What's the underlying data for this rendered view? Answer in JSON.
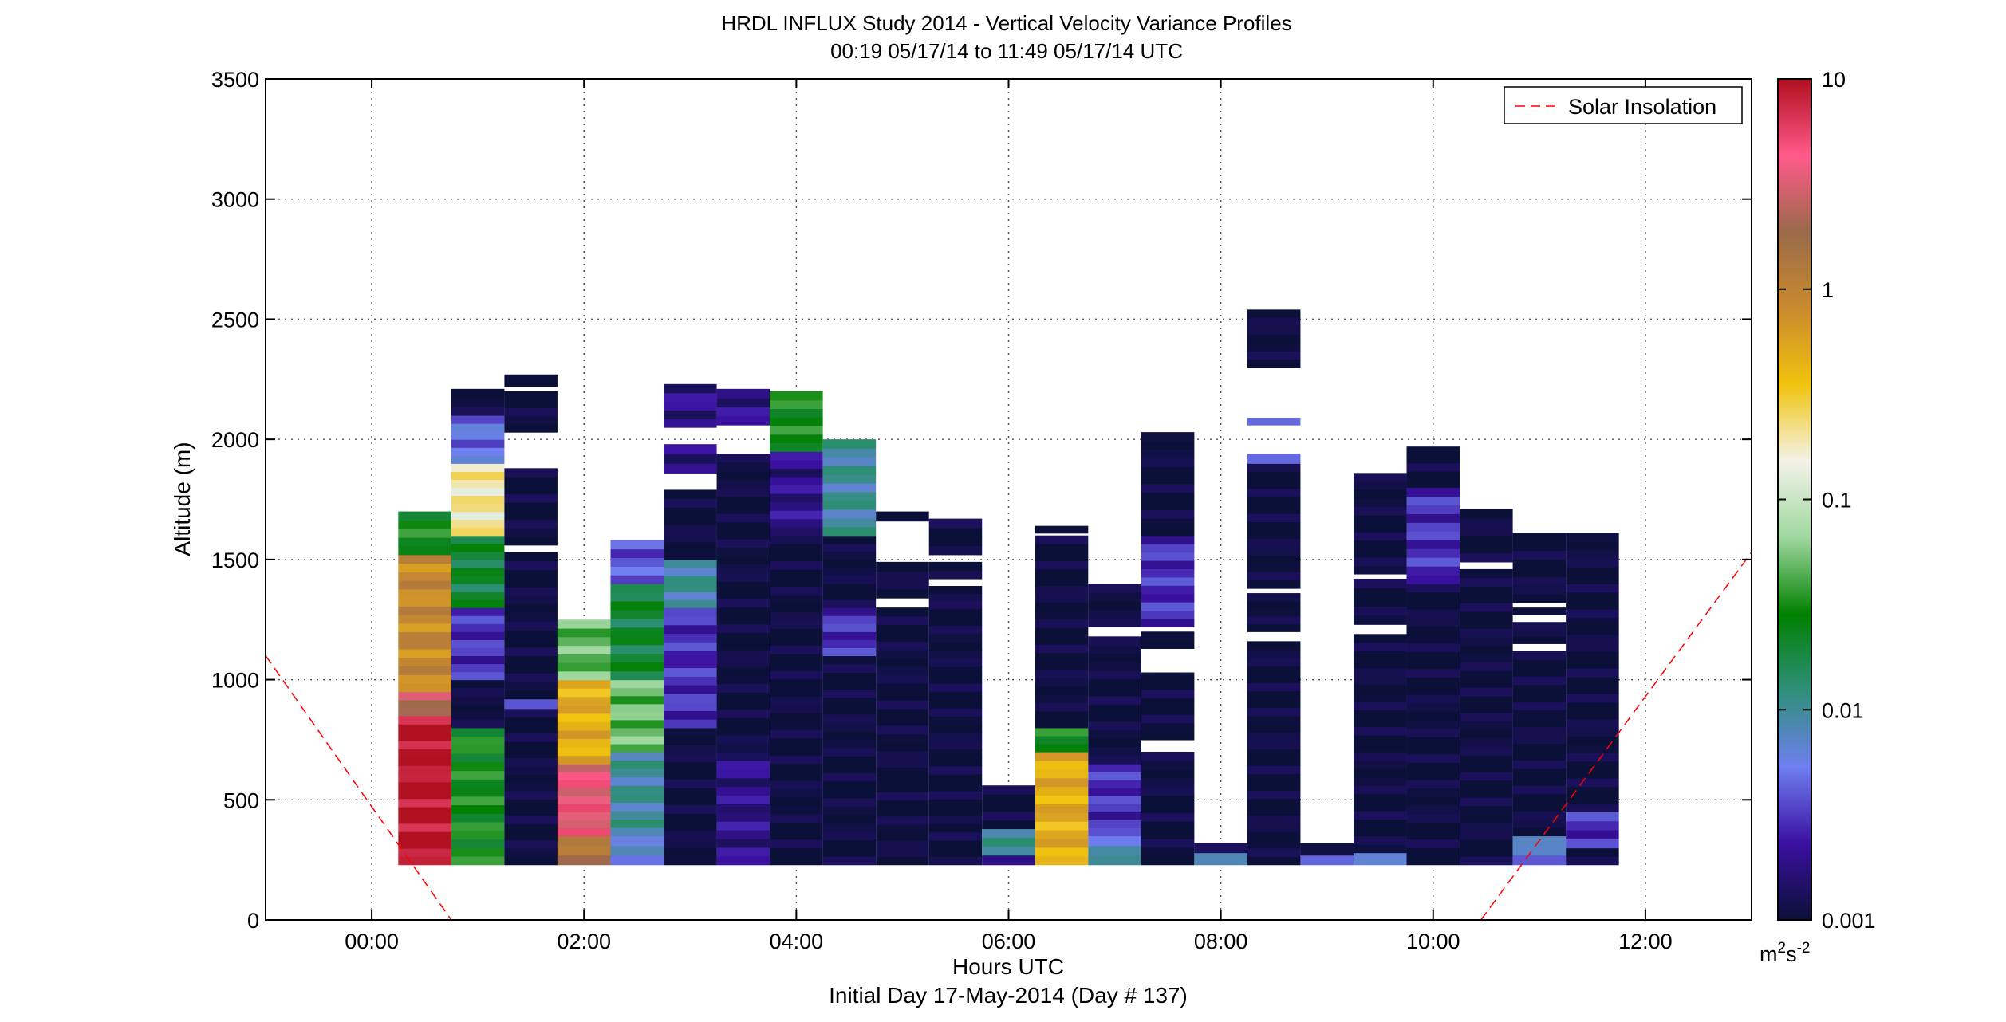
{
  "chart_data": {
    "type": "heatmap",
    "title": "HRDL INFLUX Study 2014 - Vertical Velocity Variance Profiles",
    "subtitle": "00:19 05/17/14 to 11:49 05/17/14  UTC",
    "xlabel": "Hours UTC",
    "xlabel2": "Initial Day 17-May-2014 (Day # 137)",
    "ylabel": "Altitude (m)",
    "xlim": [
      -1.0,
      13.0
    ],
    "ylim": [
      0,
      3500
    ],
    "xticks": [
      0,
      2,
      4,
      6,
      8,
      10,
      12
    ],
    "xtick_labels": [
      "00:00",
      "02:00",
      "04:00",
      "06:00",
      "08:00",
      "10:00",
      "12:00"
    ],
    "yticks": [
      0,
      500,
      1000,
      1500,
      2000,
      2500,
      3000,
      3500
    ],
    "ytick_labels": [
      "0",
      "500",
      "1000",
      "1500",
      "2000",
      "2500",
      "3000",
      "3500"
    ],
    "grid": true,
    "legend": {
      "position": "top-right",
      "entries": [
        {
          "label": "Solar Insolation",
          "color": "#ff0000",
          "style": "dashed"
        }
      ]
    },
    "colorbar": {
      "scale": "log",
      "min": 0.001,
      "max": 10,
      "ticks": [
        0.001,
        0.01,
        0.1,
        1,
        10
      ],
      "tick_labels": [
        "0.001",
        "0.01",
        "0.1",
        "1",
        "10"
      ],
      "unit_label": "m²s⁻²",
      "unit_base": "m",
      "unit_exp1": "2",
      "unit_mid": "s",
      "unit_exp2": "-2",
      "stops": [
        "#0b1038",
        "#3a10a0",
        "#6f7ff0",
        "#2f8f7a",
        "#008000",
        "#9fd89f",
        "#f2f2e8",
        "#f1c40f",
        "#c98a2e",
        "#9a6a4a",
        "#ff5a8a",
        "#b01020"
      ]
    },
    "solar_insolation": [
      {
        "x": -1.0,
        "y": 1100
      },
      {
        "x": 0.75,
        "y": 0
      },
      {
        "x": 10.45,
        "y": 0
      },
      {
        "x": 13.0,
        "y": 1530
      }
    ],
    "profiles": [
      {
        "t": 0.5,
        "top": 1700,
        "segs": [
          [
            230,
            850,
            10
          ],
          [
            850,
            950,
            2.5
          ],
          [
            950,
            1520,
            0.9
          ],
          [
            1520,
            1700,
            0.03
          ]
        ]
      },
      {
        "t": 1.0,
        "top": 2210,
        "segs": [
          [
            230,
            800,
            0.03
          ],
          [
            800,
            1000,
            0.001
          ],
          [
            1000,
            1300,
            0.003
          ],
          [
            1300,
            1600,
            0.02
          ],
          [
            1600,
            1900,
            0.2
          ],
          [
            1900,
            2100,
            0.005
          ],
          [
            2100,
            2210,
            0.001
          ]
        ]
      },
      {
        "t": 1.5,
        "top": 2270,
        "segs": [
          [
            230,
            880,
            0.001
          ],
          [
            880,
            920,
            0.006
          ],
          [
            920,
            1530,
            0.001
          ],
          [
            1560,
            1880,
            0.001
          ],
          [
            2030,
            2200,
            0.001
          ],
          [
            2220,
            2270,
            0.001
          ]
        ]
      },
      {
        "t": 2.0,
        "top": 1250,
        "segs": [
          [
            230,
            350,
            1.5
          ],
          [
            350,
            650,
            4
          ],
          [
            650,
            1000,
            0.5
          ],
          [
            1000,
            1250,
            0.05
          ]
        ]
      },
      {
        "t": 2.5,
        "top": 1580,
        "segs": [
          [
            230,
            350,
            0.006
          ],
          [
            350,
            700,
            0.01
          ],
          [
            700,
            1000,
            0.05
          ],
          [
            1000,
            1400,
            0.02
          ],
          [
            1400,
            1580,
            0.004
          ]
        ]
      },
      {
        "t": 3.0,
        "top": 2230,
        "segs": [
          [
            230,
            800,
            0.001
          ],
          [
            800,
            1300,
            0.003
          ],
          [
            1300,
            1500,
            0.01
          ],
          [
            1500,
            1790,
            0.001
          ],
          [
            1860,
            1980,
            0.002
          ],
          [
            2050,
            2230,
            0.002
          ]
        ]
      },
      {
        "t": 3.5,
        "top": 2210,
        "segs": [
          [
            230,
            700,
            0.002
          ],
          [
            700,
            1940,
            0.001
          ],
          [
            2060,
            2210,
            0.002
          ]
        ]
      },
      {
        "t": 4.0,
        "top": 2200,
        "segs": [
          [
            230,
            1600,
            0.001
          ],
          [
            1600,
            1950,
            0.002
          ],
          [
            1950,
            2200,
            0.03
          ]
        ]
      },
      {
        "t": 4.5,
        "top": 2000,
        "segs": [
          [
            230,
            1100,
            0.001
          ],
          [
            1100,
            1300,
            0.003
          ],
          [
            1300,
            1600,
            0.001
          ],
          [
            1600,
            2000,
            0.01
          ]
        ]
      },
      {
        "t": 5.0,
        "top": 1700,
        "segs": [
          [
            230,
            600,
            0.001
          ],
          [
            600,
            1300,
            0.001
          ],
          [
            1340,
            1490,
            0.001
          ],
          [
            1660,
            1700,
            0.001
          ]
        ]
      },
      {
        "t": 5.5,
        "top": 1670,
        "segs": [
          [
            230,
            400,
            0.001
          ],
          [
            400,
            1330,
            0.001
          ],
          [
            1330,
            1390,
            0.001
          ],
          [
            1420,
            1490,
            0.001
          ],
          [
            1520,
            1670,
            0.001
          ]
        ]
      },
      {
        "t": 6.0,
        "top": 560,
        "segs": [
          [
            230,
            270,
            0.002
          ],
          [
            270,
            380,
            0.01
          ],
          [
            380,
            560,
            0.001
          ]
        ]
      },
      {
        "t": 6.5,
        "top": 1640,
        "segs": [
          [
            230,
            700,
            0.5
          ],
          [
            700,
            800,
            0.03
          ],
          [
            800,
            1600,
            0.001
          ],
          [
            1610,
            1640,
            0.001
          ]
        ]
      },
      {
        "t": 7.0,
        "top": 1400,
        "segs": [
          [
            230,
            350,
            0.008
          ],
          [
            350,
            650,
            0.003
          ],
          [
            650,
            1180,
            0.001
          ],
          [
            1220,
            1400,
            0.001
          ]
        ]
      },
      {
        "t": 7.5,
        "top": 2030,
        "segs": [
          [
            230,
            700,
            0.001
          ],
          [
            750,
            1030,
            0.001
          ],
          [
            1130,
            1200,
            0.001
          ],
          [
            1220,
            1600,
            0.003
          ],
          [
            1600,
            2030,
            0.001
          ]
        ]
      },
      {
        "t": 8.0,
        "top": 320,
        "segs": [
          [
            230,
            280,
            0.006
          ],
          [
            280,
            320,
            0.001
          ]
        ]
      },
      {
        "t": 8.5,
        "top": 2540,
        "segs": [
          [
            230,
            1160,
            0.001
          ],
          [
            1200,
            1360,
            0.001
          ],
          [
            1380,
            1900,
            0.001
          ],
          [
            1900,
            1940,
            0.006
          ],
          [
            2060,
            2090,
            0.006
          ],
          [
            2300,
            2540,
            0.001
          ]
        ]
      },
      {
        "t": 9.0,
        "top": 320,
        "segs": [
          [
            230,
            270,
            0.004
          ],
          [
            270,
            320,
            0.001
          ]
        ]
      },
      {
        "t": 9.5,
        "top": 1860,
        "segs": [
          [
            230,
            280,
            0.006
          ],
          [
            280,
            1190,
            0.001
          ],
          [
            1230,
            1420,
            0.001
          ],
          [
            1440,
            1860,
            0.001
          ]
        ]
      },
      {
        "t": 10.0,
        "top": 1970,
        "segs": [
          [
            230,
            1400,
            0.001
          ],
          [
            1400,
            1800,
            0.003
          ],
          [
            1800,
            1970,
            0.001
          ]
        ]
      },
      {
        "t": 10.5,
        "top": 1710,
        "segs": [
          [
            230,
            1460,
            0.001
          ],
          [
            1490,
            1710,
            0.001
          ]
        ]
      },
      {
        "t": 11.0,
        "top": 1610,
        "segs": [
          [
            230,
            350,
            0.006
          ],
          [
            350,
            1120,
            0.001
          ],
          [
            1150,
            1240,
            0.001
          ],
          [
            1270,
            1300,
            0.001
          ],
          [
            1320,
            1610,
            0.001
          ]
        ]
      },
      {
        "t": 11.5,
        "top": 1610,
        "segs": [
          [
            230,
            300,
            0.001
          ],
          [
            300,
            450,
            0.003
          ],
          [
            450,
            1610,
            0.001
          ]
        ]
      }
    ]
  }
}
